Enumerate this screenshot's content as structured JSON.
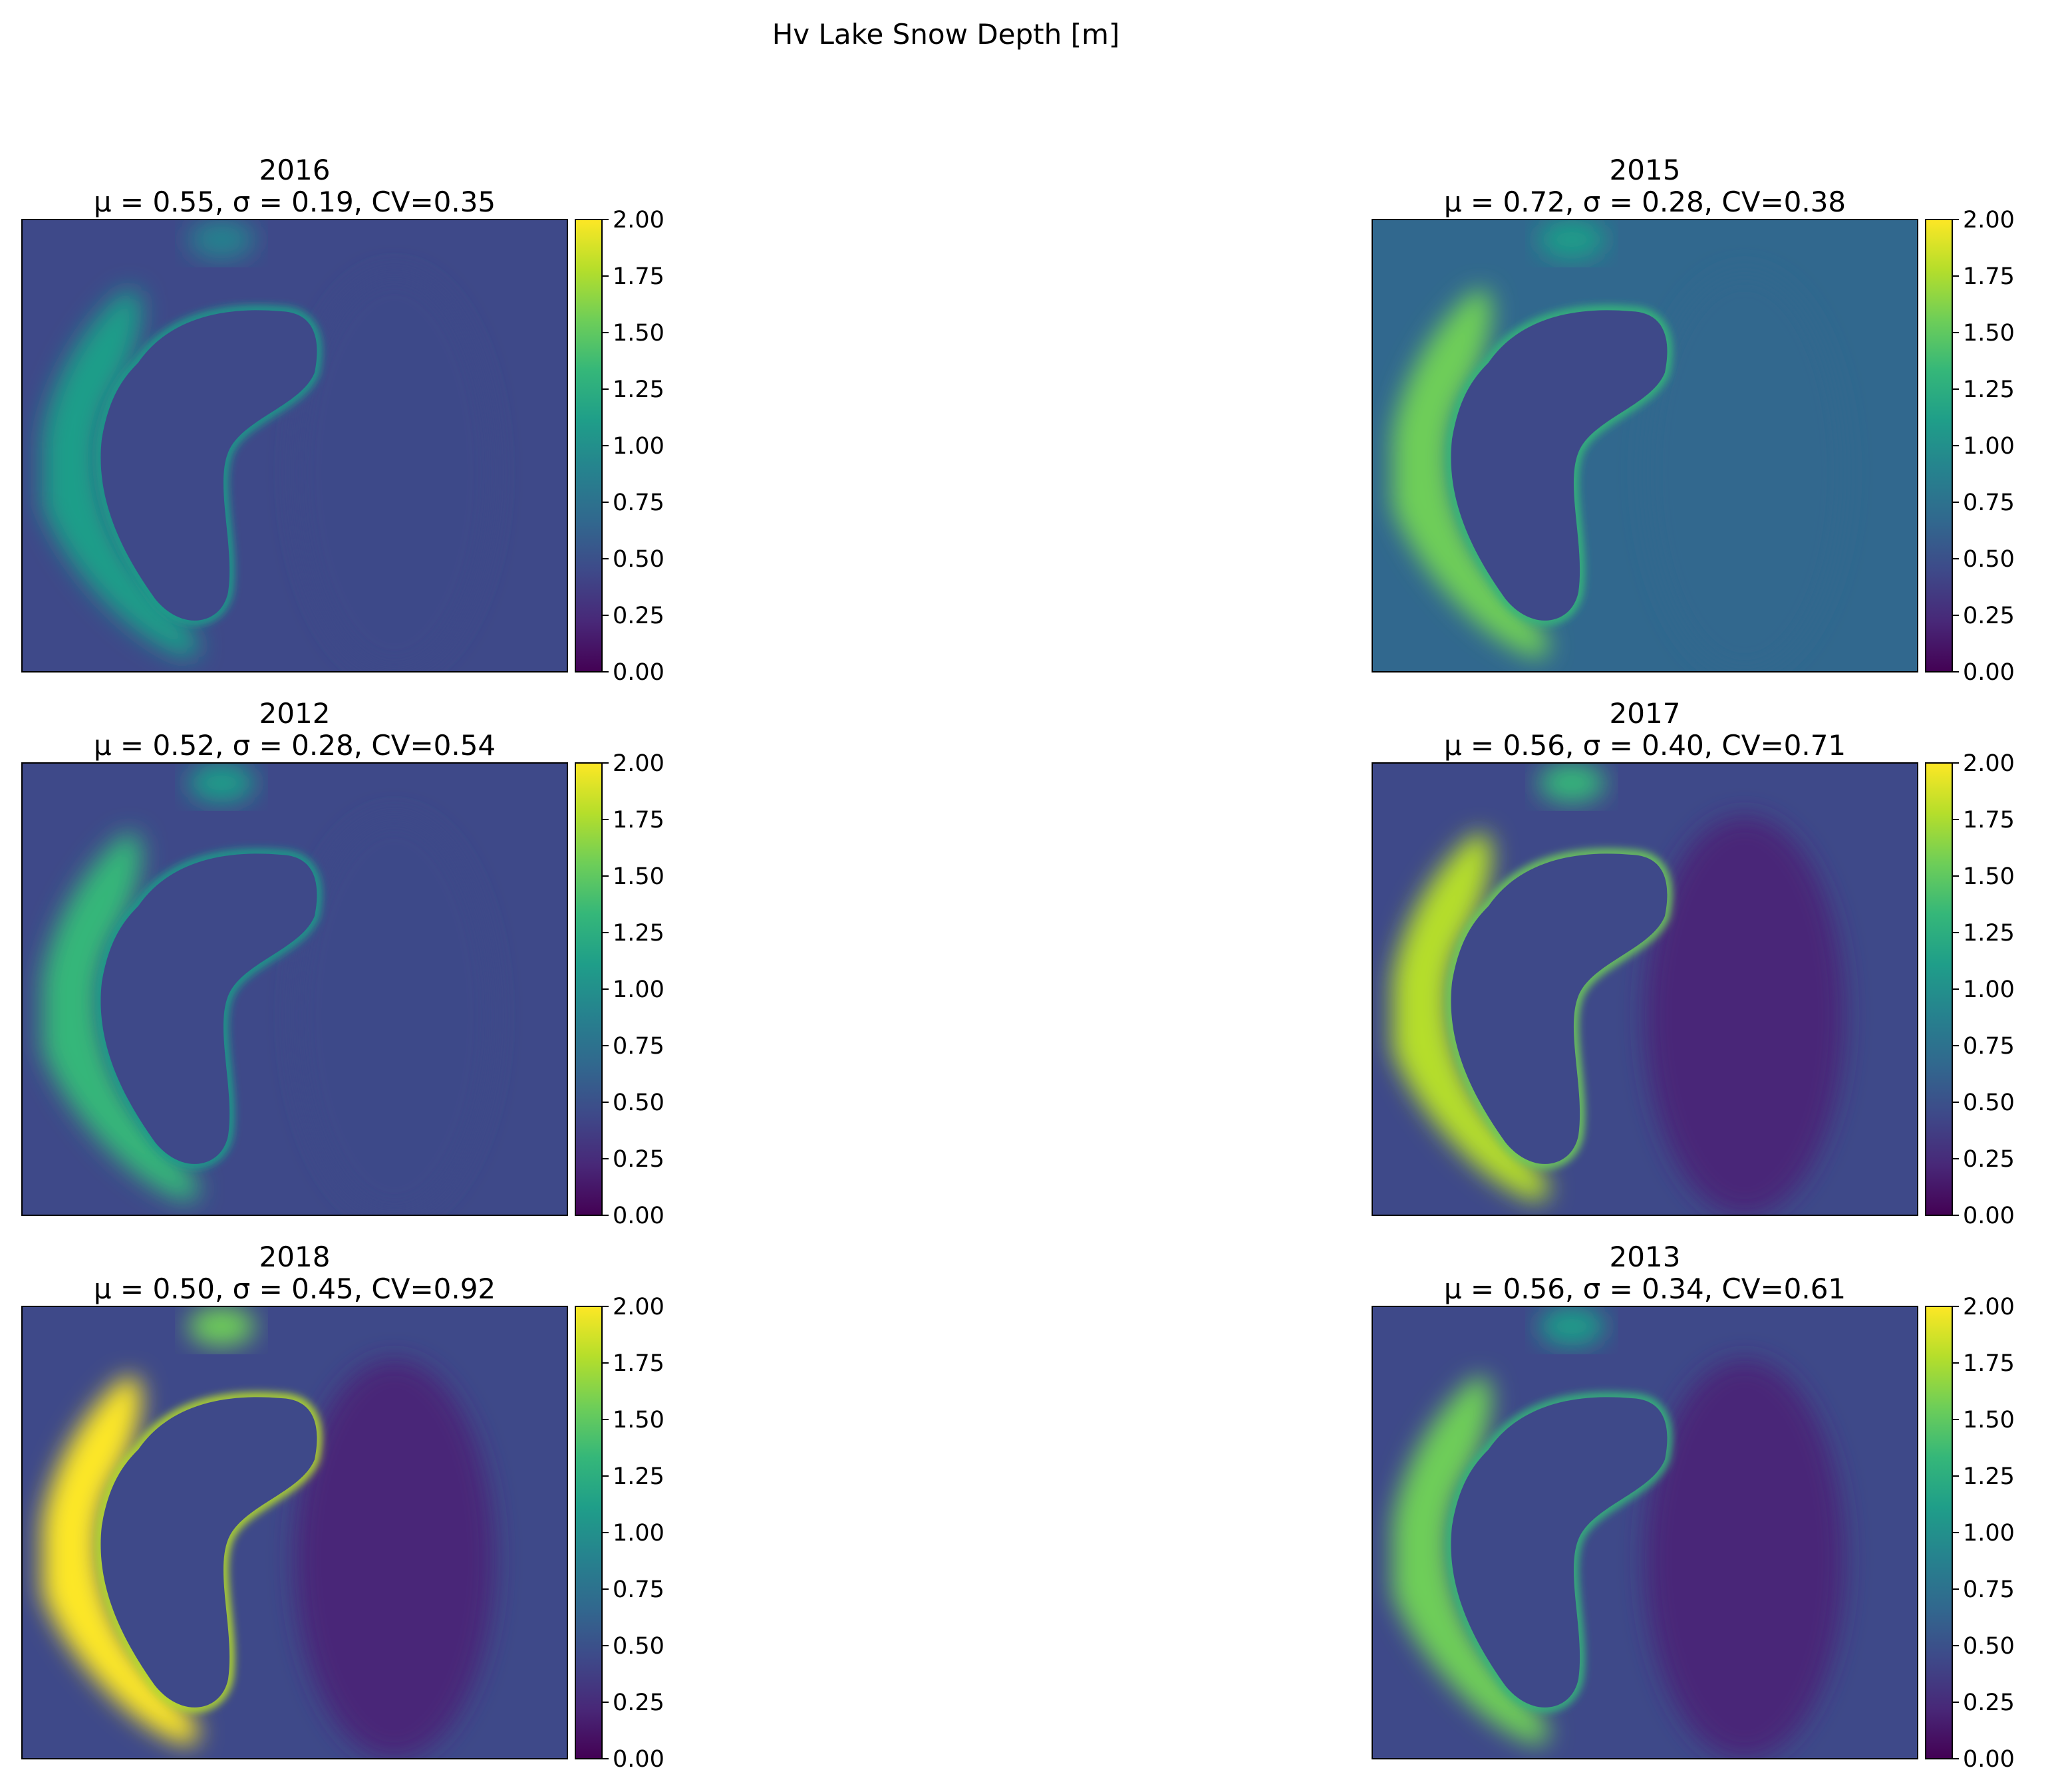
{
  "figure": {
    "title": "Hv Lake Snow Depth [m]"
  },
  "colorbar": {
    "ticks": [
      "0.00",
      "0.25",
      "0.50",
      "0.75",
      "1.00",
      "1.25",
      "1.50",
      "1.75",
      "2.00"
    ],
    "range": [
      0,
      2
    ],
    "colormap": "viridis",
    "colors": [
      "#440154",
      "#482878",
      "#3e4989",
      "#31688e",
      "#26828e",
      "#1f9e89",
      "#35b779",
      "#6ece58",
      "#b5de2b",
      "#fde725"
    ]
  },
  "chart_data": [
    {
      "type": "heatmap",
      "year": "2016",
      "stats_line": "μ = 0.55, σ = 0.19, CV=0.35",
      "stats": {
        "mean": 0.55,
        "std": 0.19,
        "cv": 0.35
      },
      "grid": "2 columns x 3 rows",
      "position": "row 1, column 1",
      "ridge_max": 1.2,
      "interior": 0.4,
      "background": 0.55,
      "east_band": 0.5
    },
    {
      "type": "heatmap",
      "year": "2015",
      "stats_line": "μ = 0.72, σ = 0.28, CV=0.38",
      "stats": {
        "mean": 0.72,
        "std": 0.28,
        "cv": 0.38
      },
      "grid": "2 columns x 3 rows",
      "position": "row 1, column 2",
      "ridge_max": 1.6,
      "interior": 0.45,
      "background": 0.7,
      "east_band": 0.6
    },
    {
      "type": "heatmap",
      "year": "2012",
      "stats_line": "μ = 0.52, σ = 0.28, CV=0.54",
      "stats": {
        "mean": 0.52,
        "std": 0.28,
        "cv": 0.54
      },
      "grid": "2 columns x 3 rows",
      "position": "row 2, column 1",
      "ridge_max": 1.35,
      "interior": 0.5,
      "background": 0.5,
      "east_band": 0.35
    },
    {
      "type": "heatmap",
      "year": "2017",
      "stats_line": "μ = 0.56, σ = 0.40, CV=0.71",
      "stats": {
        "mean": 0.56,
        "std": 0.4,
        "cv": 0.71
      },
      "grid": "2 columns x 3 rows",
      "position": "row 2, column 2",
      "ridge_max": 1.85,
      "interior": 0.4,
      "background": 0.5,
      "east_band": 0.25
    },
    {
      "type": "heatmap",
      "year": "2018",
      "stats_line": "μ = 0.50, σ = 0.45, CV=0.92",
      "stats": {
        "mean": 0.5,
        "std": 0.45,
        "cv": 0.92
      },
      "grid": "2 columns x 3 rows",
      "position": "row 3, column 1",
      "ridge_max": 2.0,
      "interior": 0.35,
      "background": 0.45,
      "east_band": 0.2
    },
    {
      "type": "heatmap",
      "year": "2013",
      "stats_line": "μ = 0.56, σ = 0.34, CV=0.61",
      "stats": {
        "mean": 0.56,
        "std": 0.34,
        "cv": 0.61
      },
      "grid": "2 columns x 3 rows",
      "position": "row 3, column 2",
      "ridge_max": 1.6,
      "interior": 0.4,
      "background": 0.55,
      "east_band": 0.25
    }
  ]
}
